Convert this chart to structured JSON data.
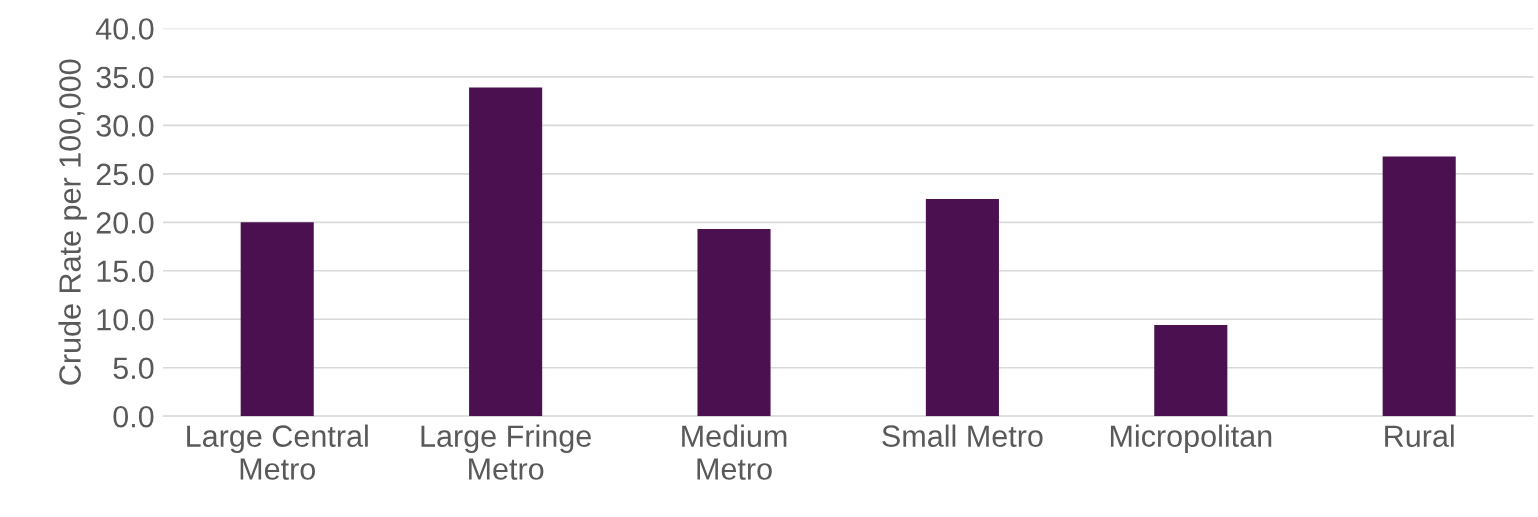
{
  "chart_data": {
    "type": "bar",
    "ylabel": "Crude Rate per 100,000",
    "categories": [
      "Large Central\nMetro",
      "Large Fringe\nMetro",
      "Medium\nMetro",
      "Small Metro",
      "Micropolitan",
      "Rural"
    ],
    "values": [
      20.0,
      33.9,
      19.3,
      22.4,
      9.4,
      26.8
    ],
    "color": "#4b1050",
    "ylim": [
      0,
      40
    ],
    "yticks": [
      {
        "value": 0,
        "label": "0.0"
      },
      {
        "value": 5,
        "label": "5.0"
      },
      {
        "value": 10,
        "label": "10.0"
      },
      {
        "value": 15,
        "label": "15.0"
      },
      {
        "value": 20,
        "label": "20.0"
      },
      {
        "value": 25,
        "label": "25.0"
      },
      {
        "value": 30,
        "label": "30.0"
      },
      {
        "value": 35,
        "label": "35.0"
      },
      {
        "value": 40,
        "label": "40.0"
      }
    ],
    "grid": "y"
  }
}
